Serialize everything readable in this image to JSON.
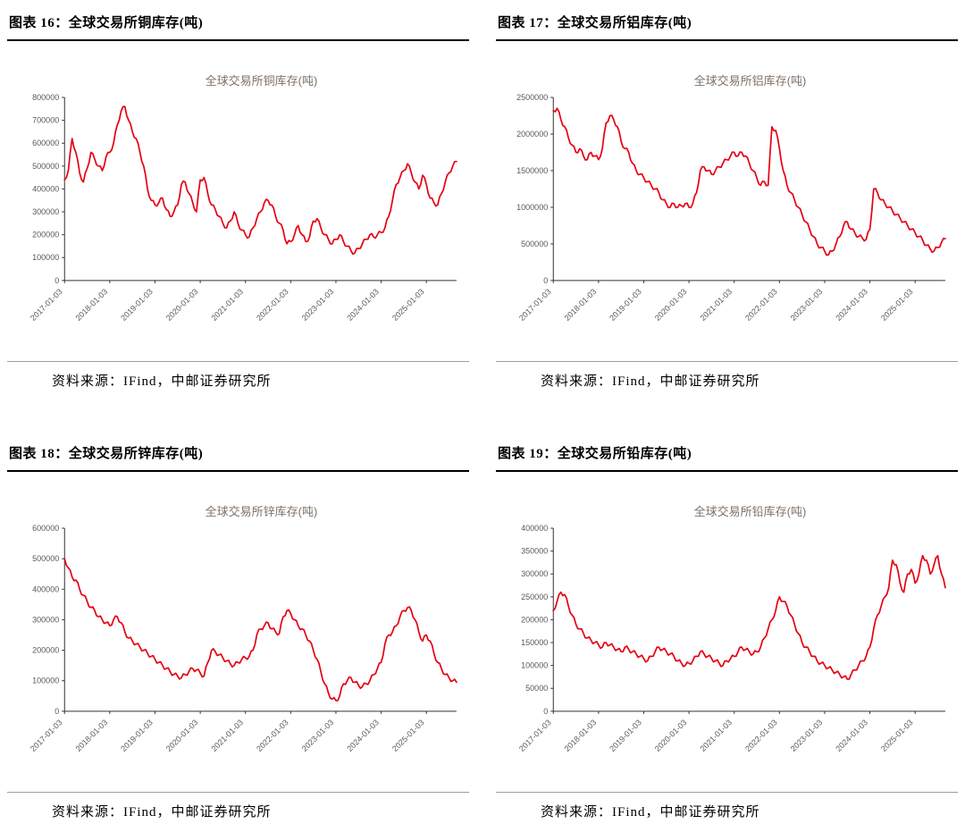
{
  "colors": {
    "line": "#e60012",
    "axis": "#333333",
    "tick_label": "#595959",
    "chart_title": "#7d7168",
    "header_rule": "#000000",
    "source_rule": "#9e9e9e"
  },
  "panels": [
    {
      "header": "图表 16：全球交易所铜库存(吨)",
      "source": "资料来源：IFind，中邮证券研究所"
    },
    {
      "header": "图表 17：全球交易所铝库存(吨)",
      "source": "资料来源：IFind，中邮证券研究所"
    },
    {
      "header": "图表 18：全球交易所锌库存(吨)",
      "source": "资料来源：IFind，中邮证券研究所"
    },
    {
      "header": "图表 19：全球交易所铅库存(吨)",
      "source": "资料来源：IFind，中邮证券研究所"
    }
  ],
  "chart_data": [
    {
      "type": "line",
      "title": "全球交易所铜库存(吨)",
      "xlabel": "",
      "ylabel": "",
      "grid": false,
      "legend": "none",
      "ylim": [
        0,
        800000
      ],
      "ytick_step": 100000,
      "xtick_labels": [
        "2017-01-03",
        "2018-01-03",
        "2019-01-03",
        "2020-01-03",
        "2021-01-03",
        "2022-01-03",
        "2023-01-03",
        "2024-01-03",
        "2025-01-03"
      ],
      "xtick_every": 12,
      "series": [
        {
          "name": "全球交易所铜库存(吨)",
          "values": [
            440000,
            480000,
            620000,
            560000,
            470000,
            430000,
            490000,
            560000,
            530000,
            500000,
            480000,
            540000,
            560000,
            600000,
            680000,
            740000,
            760000,
            700000,
            650000,
            620000,
            560000,
            500000,
            400000,
            350000,
            330000,
            340000,
            360000,
            310000,
            280000,
            300000,
            330000,
            420000,
            430000,
            380000,
            340000,
            300000,
            440000,
            450000,
            380000,
            330000,
            310000,
            280000,
            250000,
            230000,
            260000,
            300000,
            250000,
            220000,
            200000,
            190000,
            230000,
            270000,
            300000,
            340000,
            350000,
            330000,
            280000,
            250000,
            220000,
            160000,
            170000,
            200000,
            240000,
            200000,
            170000,
            190000,
            260000,
            270000,
            230000,
            200000,
            180000,
            160000,
            180000,
            200000,
            170000,
            150000,
            130000,
            120000,
            140000,
            160000,
            180000,
            200000,
            190000,
            200000,
            210000,
            230000,
            280000,
            350000,
            420000,
            450000,
            480000,
            510000,
            470000,
            430000,
            400000,
            460000,
            420000,
            360000,
            340000,
            330000,
            380000,
            430000,
            470000,
            500000,
            520000
          ]
        }
      ]
    },
    {
      "type": "line",
      "title": "全球交易所铝库存(吨)",
      "xlabel": "",
      "ylabel": "",
      "grid": false,
      "legend": "none",
      "ylim": [
        0,
        2500000
      ],
      "ytick_step": 500000,
      "xtick_labels": [
        "2017-01-03",
        "2018-01-03",
        "2019-01-03",
        "2020-01-03",
        "2021-01-03",
        "2022-01-03",
        "2023-01-03",
        "2024-01-03",
        "2025-01-03"
      ],
      "xtick_every": 12,
      "series": [
        {
          "name": "全球交易所铝库存(吨)",
          "values": [
            2320000,
            2350000,
            2200000,
            2100000,
            1950000,
            1850000,
            1750000,
            1800000,
            1700000,
            1650000,
            1750000,
            1700000,
            1650000,
            1800000,
            2150000,
            2250000,
            2200000,
            2100000,
            1900000,
            1800000,
            1750000,
            1600000,
            1500000,
            1450000,
            1400000,
            1350000,
            1300000,
            1250000,
            1200000,
            1100000,
            1050000,
            1000000,
            1050000,
            1000000,
            1020000,
            1050000,
            1000000,
            1050000,
            1200000,
            1500000,
            1550000,
            1500000,
            1450000,
            1500000,
            1550000,
            1600000,
            1650000,
            1700000,
            1750000,
            1700000,
            1750000,
            1700000,
            1600000,
            1500000,
            1400000,
            1300000,
            1350000,
            1300000,
            2100000,
            2050000,
            1800000,
            1500000,
            1300000,
            1200000,
            1100000,
            1000000,
            900000,
            800000,
            700000,
            600000,
            500000,
            450000,
            400000,
            350000,
            400000,
            500000,
            600000,
            750000,
            800000,
            700000,
            650000,
            600000,
            580000,
            560000,
            700000,
            1250000,
            1200000,
            1100000,
            1050000,
            1000000,
            950000,
            900000,
            850000,
            800000,
            750000,
            700000,
            650000,
            600000,
            550000,
            480000,
            430000,
            400000,
            450000,
            520000,
            570000
          ]
        }
      ]
    },
    {
      "type": "line",
      "title": "全球交易所锌库存(吨)",
      "xlabel": "",
      "ylabel": "",
      "grid": false,
      "legend": "none",
      "ylim": [
        0,
        600000
      ],
      "ytick_step": 100000,
      "xtick_labels": [
        "2017-01-03",
        "2018-01-03",
        "2019-01-03",
        "2020-01-03",
        "2021-01-03",
        "2022-01-03",
        "2023-01-03",
        "2024-01-03",
        "2025-01-03"
      ],
      "xtick_every": 12,
      "series": [
        {
          "name": "全球交易所锌库存(吨)",
          "values": [
            500000,
            470000,
            440000,
            430000,
            400000,
            380000,
            360000,
            340000,
            330000,
            310000,
            300000,
            290000,
            280000,
            300000,
            310000,
            290000,
            260000,
            240000,
            230000,
            220000,
            210000,
            200000,
            190000,
            180000,
            170000,
            160000,
            150000,
            140000,
            130000,
            120000,
            115000,
            110000,
            120000,
            130000,
            140000,
            135000,
            125000,
            115000,
            160000,
            200000,
            195000,
            185000,
            175000,
            165000,
            155000,
            150000,
            160000,
            170000,
            175000,
            180000,
            200000,
            250000,
            270000,
            280000,
            290000,
            270000,
            260000,
            255000,
            310000,
            330000,
            320000,
            300000,
            280000,
            270000,
            250000,
            230000,
            200000,
            170000,
            130000,
            90000,
            60000,
            40000,
            35000,
            50000,
            90000,
            100000,
            110000,
            95000,
            85000,
            80000,
            90000,
            100000,
            120000,
            140000,
            160000,
            220000,
            250000,
            260000,
            280000,
            310000,
            330000,
            340000,
            330000,
            300000,
            260000,
            230000,
            250000,
            230000,
            190000,
            160000,
            140000,
            120000,
            110000,
            100000,
            95000
          ]
        }
      ]
    },
    {
      "type": "line",
      "title": "全球交易所铅库存(吨)",
      "xlabel": "",
      "ylabel": "",
      "grid": false,
      "legend": "none",
      "ylim": [
        0,
        400000
      ],
      "ytick_step": 50000,
      "xtick_labels": [
        "2017-01-03",
        "2018-01-03",
        "2019-01-03",
        "2020-01-03",
        "2021-01-03",
        "2022-01-03",
        "2023-01-03",
        "2024-01-03",
        "2025-01-03"
      ],
      "xtick_every": 12,
      "series": [
        {
          "name": "全球交易所铅库存(吨)",
          "values": [
            220000,
            240000,
            260000,
            255000,
            230000,
            210000,
            190000,
            180000,
            170000,
            160000,
            155000,
            150000,
            145000,
            140000,
            150000,
            145000,
            140000,
            135000,
            130000,
            140000,
            135000,
            130000,
            125000,
            120000,
            115000,
            110000,
            120000,
            130000,
            140000,
            135000,
            130000,
            125000,
            120000,
            110000,
            105000,
            100000,
            105000,
            110000,
            120000,
            130000,
            125000,
            120000,
            115000,
            110000,
            105000,
            100000,
            110000,
            115000,
            120000,
            130000,
            140000,
            135000,
            130000,
            125000,
            130000,
            140000,
            160000,
            180000,
            200000,
            220000,
            250000,
            240000,
            230000,
            210000,
            190000,
            170000,
            150000,
            140000,
            130000,
            120000,
            110000,
            105000,
            100000,
            95000,
            90000,
            85000,
            80000,
            75000,
            70000,
            80000,
            90000,
            100000,
            110000,
            120000,
            140000,
            180000,
            210000,
            230000,
            250000,
            270000,
            330000,
            320000,
            280000,
            260000,
            300000,
            310000,
            280000,
            300000,
            340000,
            330000,
            300000,
            320000,
            340000,
            300000,
            270000
          ]
        }
      ]
    }
  ]
}
